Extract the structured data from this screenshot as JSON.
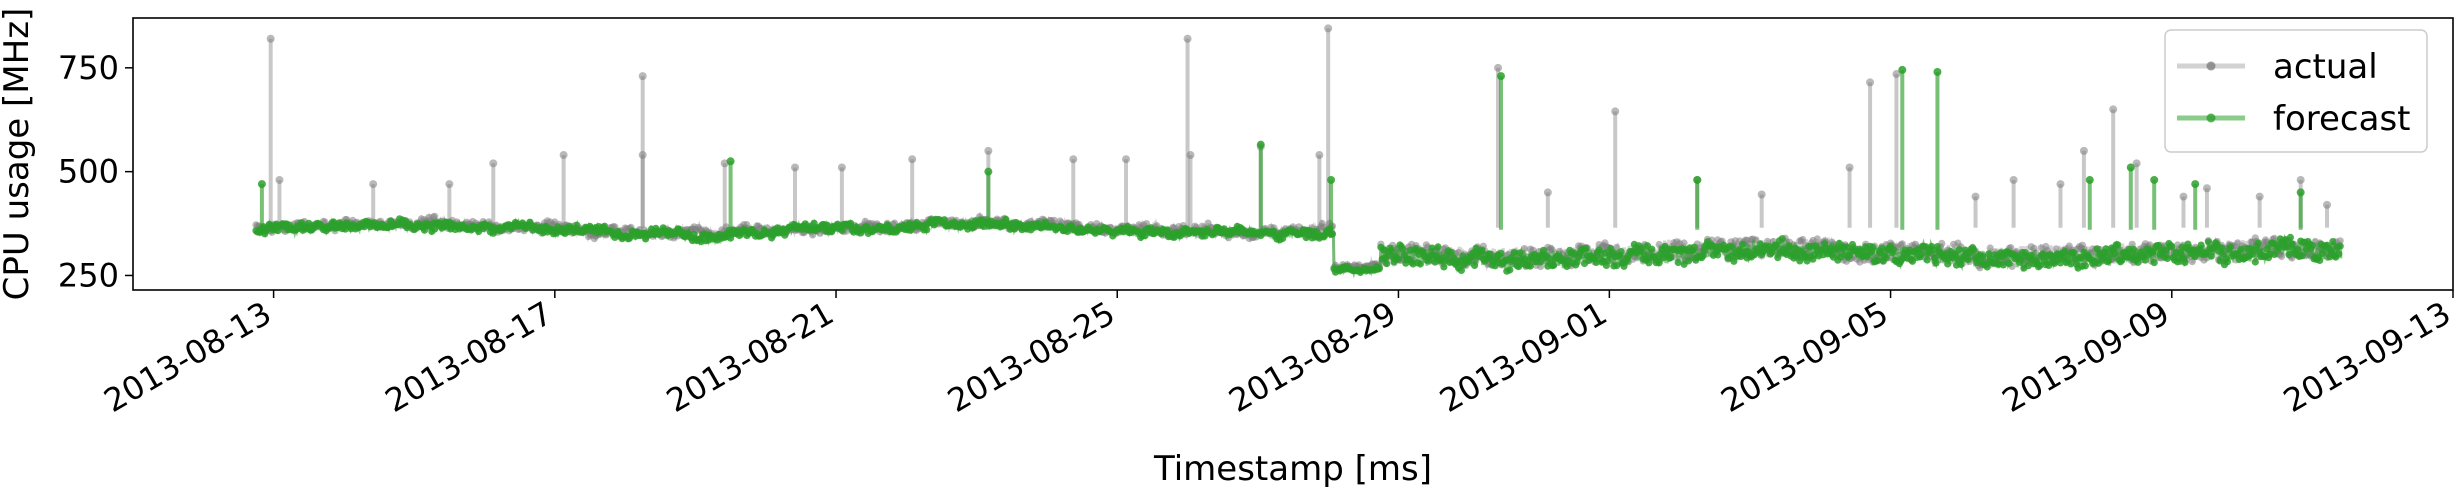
{
  "chart_data": {
    "type": "line",
    "title": "",
    "xlabel": "Timestamp [ms]",
    "ylabel": "CPU usage [MHz]",
    "x_range": [
      "2013-08-11",
      "2013-09-13"
    ],
    "ylim": [
      215,
      870
    ],
    "x_ticks": [
      "2013-08-13",
      "2013-08-17",
      "2013-08-21",
      "2013-08-25",
      "2013-08-29",
      "2013-09-01",
      "2013-09-05",
      "2013-09-09",
      "2013-09-13"
    ],
    "y_ticks": [
      250,
      500,
      750
    ],
    "grid": false,
    "legend": {
      "placement": "top-right"
    },
    "series": [
      {
        "name": "actual",
        "color": "#7f7f7f",
        "segments": [
          {
            "start": "2013-08-12T18:00",
            "end": "2013-08-28T02:00",
            "base": 365,
            "drift": 10,
            "noise": 20
          },
          {
            "start": "2013-08-28T02:00",
            "end": "2013-08-28T18:00",
            "base": 270,
            "drift": 0,
            "noise": 10
          },
          {
            "start": "2013-08-28T18:00",
            "end": "2013-09-11T10:00",
            "base": 305,
            "drift": -10,
            "noise": 45
          }
        ],
        "spikes": [
          {
            "x": "2013-08-12T23:00",
            "y": 820
          },
          {
            "x": "2013-08-13T02:00",
            "y": 480
          },
          {
            "x": "2013-08-14T10:00",
            "y": 470
          },
          {
            "x": "2013-08-15T12:00",
            "y": 470
          },
          {
            "x": "2013-08-16T03:00",
            "y": 520
          },
          {
            "x": "2013-08-17T03:00",
            "y": 540
          },
          {
            "x": "2013-08-18T06:00",
            "y": 730
          },
          {
            "x": "2013-08-18T06:00",
            "y": 540
          },
          {
            "x": "2013-08-19T10:00",
            "y": 520
          },
          {
            "x": "2013-08-20T10:00",
            "y": 510
          },
          {
            "x": "2013-08-21T02:00",
            "y": 510
          },
          {
            "x": "2013-08-22T02:00",
            "y": 530
          },
          {
            "x": "2013-08-23T04:00",
            "y": 550
          },
          {
            "x": "2013-08-24T09:00",
            "y": 530
          },
          {
            "x": "2013-08-25T03:00",
            "y": 530
          },
          {
            "x": "2013-08-26T00:00",
            "y": 820
          },
          {
            "x": "2013-08-26T01:00",
            "y": 540
          },
          {
            "x": "2013-08-27T01:00",
            "y": 560
          },
          {
            "x": "2013-08-28T00:00",
            "y": 845
          },
          {
            "x": "2013-08-27T21:00",
            "y": 540
          },
          {
            "x": "2013-08-30T10:00",
            "y": 750
          },
          {
            "x": "2013-08-31T03:00",
            "y": 450
          },
          {
            "x": "2013-09-01T02:00",
            "y": 645
          },
          {
            "x": "2013-09-02T06:00",
            "y": 480
          },
          {
            "x": "2013-09-03T04:00",
            "y": 445
          },
          {
            "x": "2013-09-04T10:00",
            "y": 510
          },
          {
            "x": "2013-09-05T02:00",
            "y": 735
          },
          {
            "x": "2013-09-04T17:00",
            "y": 715
          },
          {
            "x": "2013-09-06T05:00",
            "y": 440
          },
          {
            "x": "2013-09-06T18:00",
            "y": 480
          },
          {
            "x": "2013-09-07T10:00",
            "y": 470
          },
          {
            "x": "2013-09-07T18:00",
            "y": 550
          },
          {
            "x": "2013-09-08T04:00",
            "y": 650
          },
          {
            "x": "2013-09-08T12:00",
            "y": 520
          },
          {
            "x": "2013-09-09T04:00",
            "y": 440
          },
          {
            "x": "2013-09-09T12:00",
            "y": 460
          },
          {
            "x": "2013-09-10T06:00",
            "y": 440
          },
          {
            "x": "2013-09-10T20:00",
            "y": 480
          },
          {
            "x": "2013-09-11T05:00",
            "y": 420
          }
        ]
      },
      {
        "name": "forecast",
        "color": "#2ca02c",
        "segments": [
          {
            "start": "2013-08-12T18:00",
            "end": "2013-08-28T02:00",
            "base": 360,
            "drift": 10,
            "noise": 18
          },
          {
            "start": "2013-08-28T02:00",
            "end": "2013-08-28T18:00",
            "base": 265,
            "drift": 0,
            "noise": 8
          },
          {
            "start": "2013-08-28T18:00",
            "end": "2013-09-11T10:00",
            "base": 300,
            "drift": -10,
            "noise": 42
          }
        ],
        "spikes": [
          {
            "x": "2013-08-12T20:00",
            "y": 470
          },
          {
            "x": "2013-08-19T12:00",
            "y": 525
          },
          {
            "x": "2013-08-23T04:00",
            "y": 500
          },
          {
            "x": "2013-08-27T01:00",
            "y": 565
          },
          {
            "x": "2013-08-28T01:00",
            "y": 480
          },
          {
            "x": "2013-08-30T11:00",
            "y": 730
          },
          {
            "x": "2013-09-02T06:00",
            "y": 480
          },
          {
            "x": "2013-09-05T04:00",
            "y": 745
          },
          {
            "x": "2013-09-05T16:00",
            "y": 740
          },
          {
            "x": "2013-09-07T20:00",
            "y": 480
          },
          {
            "x": "2013-09-08T10:00",
            "y": 510
          },
          {
            "x": "2013-09-08T18:00",
            "y": 480
          },
          {
            "x": "2013-09-09T08:00",
            "y": 470
          },
          {
            "x": "2013-09-10T20:00",
            "y": 450
          }
        ]
      }
    ]
  }
}
